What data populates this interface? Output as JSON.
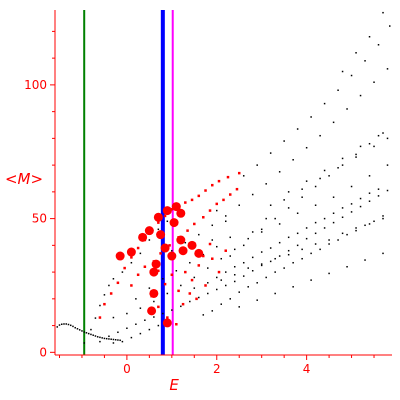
{
  "chart_data": {
    "type": "scatter",
    "xlabel": "E",
    "ylabel": "<M>",
    "xlim": [
      -1.6,
      5.9
    ],
    "ylim": [
      -1,
      128
    ],
    "x_ticks": [
      0,
      2,
      4
    ],
    "x_tick_labels": [
      "0",
      "2",
      "4"
    ],
    "y_ticks": [
      0,
      50,
      100
    ],
    "y_tick_labels": [
      "0",
      "50",
      "100"
    ],
    "grid": false,
    "vertical_lines": [
      {
        "x": -0.95,
        "color": "#008000"
      },
      {
        "x": 0.8,
        "color": "#0000ff"
      },
      {
        "x": 1.02,
        "color": "#ff00ff"
      }
    ],
    "series": [
      {
        "color": "#000000",
        "marker_size": 1.5,
        "points": [
          [
            -1.55,
            9.5
          ],
          [
            -1.5,
            10.2
          ],
          [
            -1.45,
            10.5
          ],
          [
            -1.4,
            10.6
          ],
          [
            -1.35,
            10.6
          ],
          [
            -1.3,
            10.4
          ],
          [
            -1.25,
            10.1
          ],
          [
            -1.2,
            9.7
          ],
          [
            -1.15,
            9.2
          ],
          [
            -1.1,
            8.8
          ],
          [
            -1.05,
            8.4
          ],
          [
            -1.0,
            8.0
          ],
          [
            -0.95,
            7.6
          ],
          [
            -0.9,
            7.3
          ],
          [
            -0.85,
            7.0
          ],
          [
            -0.8,
            6.7
          ],
          [
            -0.75,
            6.4
          ],
          [
            -0.7,
            6.1
          ],
          [
            -0.65,
            5.8
          ],
          [
            -0.6,
            5.6
          ],
          [
            -0.55,
            5.4
          ],
          [
            -0.5,
            5.2
          ],
          [
            -0.45,
            5.1
          ],
          [
            -0.4,
            5.0
          ],
          [
            -0.35,
            4.9
          ],
          [
            -0.3,
            4.8
          ],
          [
            -0.25,
            4.7
          ],
          [
            -0.2,
            4.6
          ],
          [
            -0.15,
            4.5
          ],
          [
            -0.95,
            3.5
          ],
          [
            -0.8,
            8.5
          ],
          [
            -0.7,
            12.8
          ],
          [
            -0.6,
            17.5
          ],
          [
            -0.5,
            21.5
          ],
          [
            -0.4,
            25.0
          ],
          [
            -0.3,
            27.5
          ],
          [
            -0.1,
            30.0
          ],
          [
            0.1,
            33.5
          ],
          [
            0.3,
            37.0
          ],
          [
            0.5,
            42.0
          ],
          [
            0.7,
            46.0
          ],
          [
            0.9,
            49.0
          ],
          [
            -0.6,
            4.0
          ],
          [
            -0.4,
            6.0
          ],
          [
            -0.2,
            7.5
          ],
          [
            0.0,
            9.0
          ],
          [
            0.2,
            10.5
          ],
          [
            0.4,
            12.0
          ],
          [
            0.6,
            13.2
          ],
          [
            0.8,
            14.5
          ],
          [
            1.0,
            15.8
          ],
          [
            1.2,
            17.2
          ],
          [
            1.4,
            19.0
          ],
          [
            1.6,
            20.5
          ],
          [
            1.8,
            22.0
          ],
          [
            2.0,
            23.5
          ],
          [
            2.2,
            25.0
          ],
          [
            2.4,
            26.5
          ],
          [
            2.6,
            28.5
          ],
          [
            2.8,
            30.5
          ],
          [
            3.0,
            32.5
          ],
          [
            3.2,
            34.0
          ],
          [
            3.4,
            36.0
          ],
          [
            3.6,
            38.0
          ],
          [
            3.8,
            40.0
          ],
          [
            4.0,
            42.5
          ],
          [
            4.2,
            44.5
          ],
          [
            4.4,
            46.5
          ],
          [
            4.6,
            48.5
          ],
          [
            4.8,
            50.5
          ],
          [
            5.0,
            52.5
          ],
          [
            5.2,
            54.5
          ],
          [
            5.4,
            56.5
          ],
          [
            5.6,
            58.5
          ],
          [
            5.8,
            60.5
          ],
          [
            -0.3,
            13.0
          ],
          [
            0.0,
            14.5
          ],
          [
            0.3,
            16.5
          ],
          [
            0.6,
            19.0
          ],
          [
            0.9,
            22.0
          ],
          [
            1.2,
            25.0
          ],
          [
            1.5,
            28.0
          ],
          [
            1.8,
            31.5
          ],
          [
            2.1,
            35.0
          ],
          [
            2.4,
            38.5
          ],
          [
            2.7,
            42.5
          ],
          [
            3.0,
            46.0
          ],
          [
            3.3,
            50.0
          ],
          [
            3.6,
            54.0
          ],
          [
            3.9,
            58.0
          ],
          [
            4.2,
            62.0
          ],
          [
            4.5,
            66.0
          ],
          [
            4.8,
            70.0
          ],
          [
            5.1,
            74.0
          ],
          [
            5.4,
            78.0
          ],
          [
            5.7,
            82.0
          ],
          [
            1.0,
            38.0
          ],
          [
            1.3,
            41.0
          ],
          [
            1.6,
            44.0
          ],
          [
            1.9,
            47.5
          ],
          [
            2.2,
            51.0
          ],
          [
            2.5,
            55.0
          ],
          [
            2.8,
            59.0
          ],
          [
            3.1,
            63.0
          ],
          [
            3.4,
            67.5
          ],
          [
            3.7,
            72.0
          ],
          [
            4.0,
            76.5
          ],
          [
            4.3,
            81.0
          ],
          [
            4.6,
            86.0
          ],
          [
            4.9,
            91.0
          ],
          [
            5.2,
            96.0
          ],
          [
            5.5,
            101.0
          ],
          [
            5.8,
            106.0
          ],
          [
            2.6,
            66.0
          ],
          [
            2.9,
            70.0
          ],
          [
            3.2,
            74.5
          ],
          [
            3.5,
            79.0
          ],
          [
            3.8,
            83.5
          ],
          [
            4.1,
            88.0
          ],
          [
            4.4,
            93.0
          ],
          [
            4.7,
            98.0
          ],
          [
            5.0,
            103.5
          ],
          [
            5.3,
            109.0
          ],
          [
            5.6,
            115.0
          ],
          [
            5.85,
            122.0
          ],
          [
            5.7,
            127.0
          ],
          [
            5.4,
            118.0
          ],
          [
            5.1,
            112.0
          ],
          [
            4.8,
            105.0
          ],
          [
            3.0,
            45.0
          ],
          [
            3.4,
            48.0
          ],
          [
            3.8,
            52.0
          ],
          [
            4.2,
            55.0
          ],
          [
            4.6,
            58.0
          ],
          [
            5.0,
            62.0
          ],
          [
            5.4,
            66.0
          ],
          [
            5.8,
            70.0
          ],
          [
            0.2,
            20.0
          ],
          [
            0.5,
            24.0
          ],
          [
            0.8,
            27.5
          ],
          [
            1.1,
            30.5
          ],
          [
            1.4,
            33.5
          ],
          [
            1.7,
            36.5
          ],
          [
            2.0,
            39.5
          ],
          [
            2.3,
            43.0
          ],
          [
            0.1,
            5.5
          ],
          [
            0.3,
            7.0
          ],
          [
            0.5,
            8.5
          ],
          [
            0.7,
            10.0
          ],
          [
            -0.1,
            4.0
          ],
          [
            -0.3,
            3.5
          ],
          [
            1.7,
            14.0
          ],
          [
            1.9,
            15.5
          ],
          [
            2.1,
            18.0
          ],
          [
            2.3,
            20.0
          ],
          [
            2.5,
            22.5
          ],
          [
            2.7,
            24.5
          ],
          [
            2.9,
            26.0
          ],
          [
            3.1,
            28.0
          ],
          [
            3.3,
            30.0
          ],
          [
            3.5,
            31.5
          ],
          [
            3.7,
            33.5
          ],
          [
            3.9,
            35.0
          ],
          [
            4.1,
            37.0
          ],
          [
            4.3,
            38.5
          ],
          [
            4.5,
            40.5
          ],
          [
            4.7,
            42.0
          ],
          [
            4.9,
            44.0
          ],
          [
            5.1,
            45.5
          ],
          [
            5.3,
            47.5
          ],
          [
            5.5,
            49.0
          ],
          [
            5.7,
            51.0
          ],
          [
            2.0,
            28.0
          ],
          [
            2.2,
            30.0
          ],
          [
            2.4,
            32.0
          ],
          [
            2.6,
            33.5
          ],
          [
            2.8,
            35.5
          ],
          [
            3.0,
            37.5
          ],
          [
            3.2,
            39.0
          ],
          [
            3.4,
            41.0
          ],
          [
            3.6,
            43.0
          ],
          [
            3.8,
            44.5
          ],
          [
            4.0,
            46.5
          ],
          [
            4.2,
            48.5
          ],
          [
            4.4,
            50.0
          ],
          [
            4.6,
            52.0
          ],
          [
            4.8,
            54.0
          ],
          [
            5.0,
            55.5
          ],
          [
            5.2,
            57.5
          ],
          [
            5.4,
            59.5
          ],
          [
            5.6,
            61.0
          ],
          [
            2.5,
            17.0
          ],
          [
            2.9,
            19.5
          ],
          [
            3.3,
            22.0
          ],
          [
            3.7,
            24.5
          ],
          [
            4.1,
            27.0
          ],
          [
            4.5,
            29.5
          ],
          [
            4.9,
            32.0
          ],
          [
            5.3,
            34.5
          ],
          [
            5.7,
            37.0
          ],
          [
            3.2,
            55.0
          ],
          [
            3.6,
            60.0
          ],
          [
            4.0,
            64.0
          ],
          [
            4.4,
            68.0
          ],
          [
            4.8,
            72.5
          ],
          [
            5.2,
            77.0
          ],
          [
            5.6,
            81.0
          ],
          [
            1.5,
            24.0
          ],
          [
            1.8,
            26.0
          ],
          [
            2.1,
            27.0
          ],
          [
            2.4,
            29.0
          ],
          [
            2.7,
            31.5
          ],
          [
            3.0,
            33.0
          ],
          [
            3.3,
            35.0
          ],
          [
            3.6,
            36.5
          ],
          [
            3.9,
            38.5
          ],
          [
            4.2,
            40.5
          ],
          [
            4.5,
            42.0
          ],
          [
            4.8,
            44.5
          ],
          [
            5.1,
            46.5
          ],
          [
            5.4,
            48.0
          ],
          [
            5.7,
            50.0
          ],
          [
            2.0,
            53.0
          ],
          [
            2.2,
            49.0
          ],
          [
            1.9,
            42.0
          ],
          [
            2.3,
            36.0
          ],
          [
            2.6,
            40.0
          ],
          [
            2.8,
            45.0
          ],
          [
            3.1,
            50.0
          ],
          [
            3.5,
            57.0
          ],
          [
            3.9,
            61.0
          ],
          [
            4.3,
            65.0
          ],
          [
            4.7,
            69.0
          ],
          [
            5.1,
            73.0
          ],
          [
            5.5,
            77.0
          ],
          [
            5.8,
            80.0
          ]
        ]
      },
      {
        "color": "#ff0000",
        "marker_size": 2.5,
        "points": [
          [
            -0.6,
            13.0
          ],
          [
            -0.5,
            18.0
          ],
          [
            -0.35,
            22.0
          ],
          [
            -0.2,
            26.0
          ],
          [
            -0.05,
            31.5
          ],
          [
            0.1,
            35.5
          ],
          [
            0.25,
            39.0
          ],
          [
            0.4,
            42.0
          ],
          [
            0.55,
            45.0
          ],
          [
            0.7,
            48.5
          ],
          [
            0.85,
            51.0
          ],
          [
            1.0,
            53.5
          ],
          [
            1.15,
            55.0
          ],
          [
            1.3,
            56.0
          ],
          [
            1.45,
            57.0
          ],
          [
            1.6,
            58.5
          ],
          [
            1.75,
            60.5
          ],
          [
            1.9,
            62.5
          ],
          [
            2.05,
            64.0
          ],
          [
            2.25,
            65.5
          ],
          [
            2.5,
            67.0
          ],
          [
            0.1,
            25.0
          ],
          [
            0.25,
            29.0
          ],
          [
            0.4,
            32.0
          ],
          [
            0.6,
            34.0
          ],
          [
            0.75,
            37.0
          ],
          [
            0.95,
            40.0
          ],
          [
            1.15,
            43.0
          ],
          [
            1.35,
            45.5
          ],
          [
            1.5,
            48.0
          ],
          [
            1.7,
            50.5
          ],
          [
            1.85,
            53.0
          ],
          [
            2.0,
            55.5
          ],
          [
            2.15,
            57.0
          ],
          [
            2.3,
            59.0
          ],
          [
            2.45,
            61.0
          ],
          [
            0.55,
            21.0
          ],
          [
            0.7,
            17.0
          ],
          [
            0.85,
            25.5
          ],
          [
            1.0,
            29.0
          ],
          [
            1.15,
            23.0
          ],
          [
            1.3,
            30.0
          ],
          [
            1.45,
            27.0
          ],
          [
            1.6,
            32.5
          ],
          [
            1.75,
            25.0
          ],
          [
            1.9,
            35.0
          ],
          [
            2.05,
            30.0
          ],
          [
            2.2,
            38.0
          ],
          [
            1.25,
            18.0
          ],
          [
            1.4,
            22.0
          ],
          [
            1.55,
            20.0
          ],
          [
            1.7,
            36.0
          ],
          [
            0.9,
            13.0
          ],
          [
            1.1,
            10.5
          ],
          [
            0.7,
            30.5
          ],
          [
            1.85,
            40.5
          ]
        ]
      },
      {
        "color": "#ff0000",
        "marker_size": 4.5,
        "points": [
          [
            -0.15,
            36.0
          ],
          [
            0.1,
            37.5
          ],
          [
            0.35,
            43.0
          ],
          [
            0.5,
            45.5
          ],
          [
            0.7,
            50.5
          ],
          [
            0.9,
            53.0
          ],
          [
            1.1,
            54.5
          ],
          [
            1.2,
            52.0
          ],
          [
            0.75,
            44.0
          ],
          [
            1.05,
            48.5
          ],
          [
            1.2,
            42.0
          ],
          [
            1.25,
            38.0
          ],
          [
            0.65,
            33.0
          ],
          [
            0.85,
            39.0
          ],
          [
            1.0,
            36.0
          ],
          [
            0.6,
            22.0
          ],
          [
            0.6,
            30.0
          ],
          [
            1.45,
            40.0
          ],
          [
            1.6,
            37.0
          ],
          [
            0.55,
            15.5
          ],
          [
            0.9,
            11.0
          ]
        ]
      }
    ]
  }
}
